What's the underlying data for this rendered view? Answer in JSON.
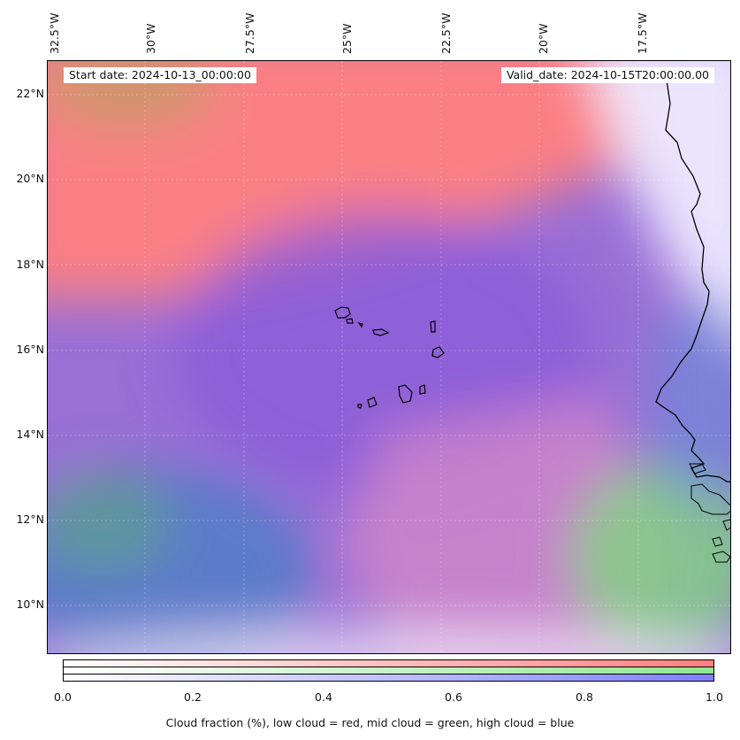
{
  "header": {
    "start_date": "Start date: 2024-10-13_00:00:00",
    "valid_date": "Valid_date: 2024-10-15T20:00:00.00"
  },
  "axes": {
    "lon_labels": [
      "32.5°W",
      "30°W",
      "27.5°W",
      "25°W",
      "22.5°W",
      "20°W",
      "17.5°W"
    ],
    "lat_labels": [
      "22°N",
      "20°N",
      "18°N",
      "16°N",
      "14°N",
      "12°N",
      "10°N"
    ]
  },
  "colorbar": {
    "ticks": [
      "0.0",
      "0.2",
      "0.4",
      "0.6",
      "0.8",
      "1.0"
    ],
    "label": "Cloud fraction (%), low cloud = red, mid cloud = green, high cloud = blue",
    "colors": {
      "low": "#ff7f7f",
      "mid": "#8fe88f",
      "high": "#7f7fff"
    }
  }
}
